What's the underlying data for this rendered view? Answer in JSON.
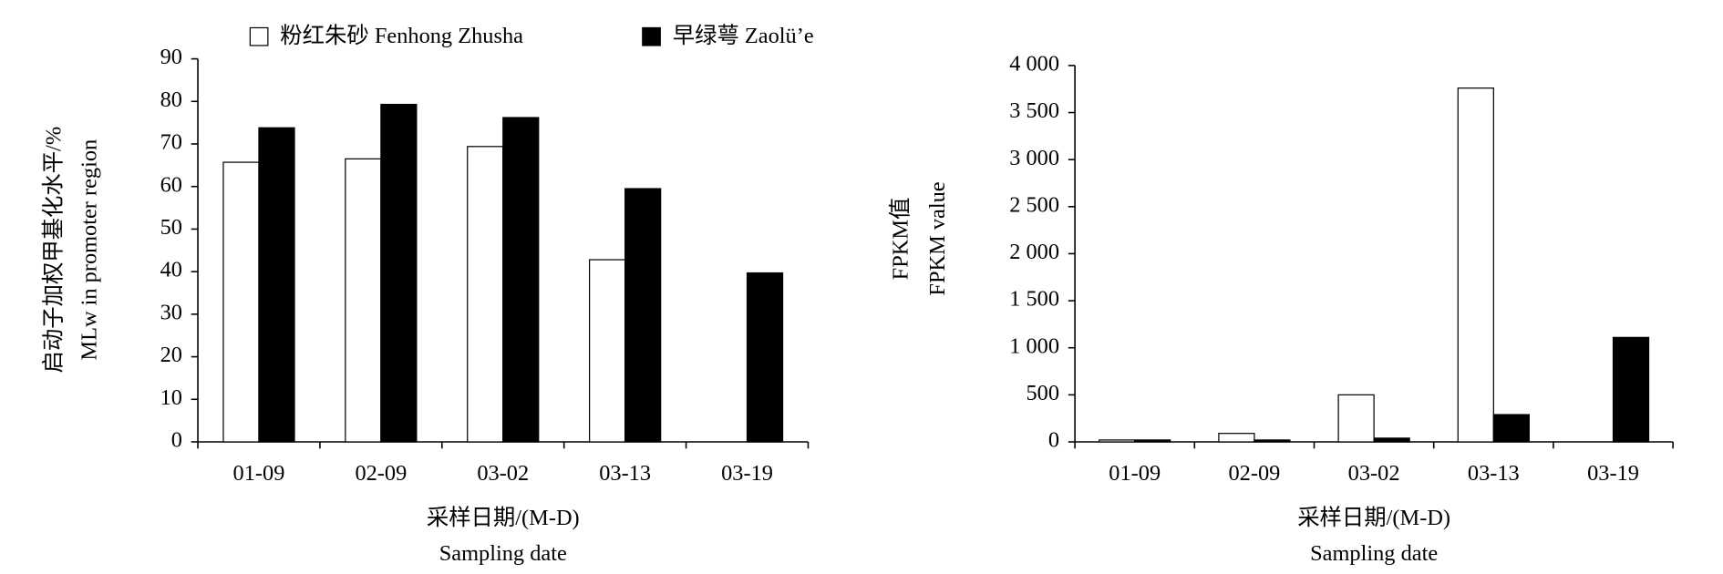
{
  "chart_data": [
    {
      "type": "bar",
      "y_label": [
        "启动子加权甲基化水平/%",
        "MLw in promoter region"
      ],
      "x_label": [
        "采样日期/(M-D)",
        "Sampling date"
      ],
      "categories": [
        "01-09",
        "02-09",
        "03-02",
        "03-13",
        "03-19"
      ],
      "series": [
        {
          "name": "粉红朱砂 Fenhong Zhusha",
          "color": "#ffffff",
          "values": [
            65.7,
            66.5,
            69.4,
            42.8,
            0
          ]
        },
        {
          "name": "早绿萼 Zaolü’e",
          "color": "#000000",
          "values": [
            73.8,
            79.3,
            76.2,
            59.5,
            39.7
          ]
        }
      ],
      "ylim": [
        0,
        90
      ],
      "yticks": [
        0,
        10,
        20,
        30,
        40,
        50,
        60,
        70,
        80,
        90
      ],
      "legend": "top"
    },
    {
      "type": "bar",
      "y_label": [
        "FPKM值",
        "FPKM value"
      ],
      "x_label": [
        "采样日期/(M-D)",
        "Sampling date"
      ],
      "categories": [
        "01-09",
        "02-09",
        "03-02",
        "03-13",
        "03-19"
      ],
      "series": [
        {
          "color": "#ffffff",
          "values": [
            20,
            90,
            500,
            3760,
            0
          ]
        },
        {
          "color": "#000000",
          "values": [
            20,
            20,
            40,
            290,
            1110
          ]
        }
      ],
      "ylim": [
        0,
        4000
      ],
      "yticks": [
        0,
        500,
        {
          "value": 1000,
          "label": "1 000"
        },
        {
          "value": 1500,
          "label": "1 500"
        },
        {
          "value": 2000,
          "label": "2 000"
        },
        {
          "value": 2500,
          "label": "2 500"
        },
        {
          "value": 3000,
          "label": "3 000"
        },
        {
          "value": 3500,
          "label": "3 500"
        },
        {
          "value": 4000,
          "label": "4 000"
        }
      ]
    }
  ]
}
